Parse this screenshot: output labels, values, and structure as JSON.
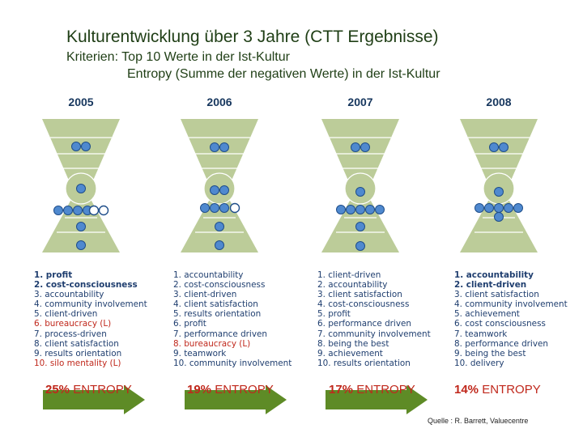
{
  "header": {
    "title": "Kulturentwicklung über 3 Jahre (CTT Ergebnisse)",
    "criteria_line1": "Kriterien: Top 10 Werte in  der Ist-Kultur",
    "criteria_line2": "Entropy (Summe der negativen Werte) in der Ist-Kultur"
  },
  "years": [
    {
      "year": "2005",
      "values": [
        {
          "text": "1. profit",
          "style": "bold"
        },
        {
          "text": "2. cost-consciousness",
          "style": "bold"
        },
        {
          "text": "3. accountability",
          "style": "normal"
        },
        {
          "text": "4. community involvement",
          "style": "normal"
        },
        {
          "text": "5. client-driven",
          "style": "normal"
        },
        {
          "text": "6. bureaucracy (L)",
          "style": "red"
        },
        {
          "text": "7. process-driven",
          "style": "normal"
        },
        {
          "text": "8. client satisfaction",
          "style": "normal"
        },
        {
          "text": "9. results orientation",
          "style": "normal"
        },
        {
          "text": "10. silo mentality (L)",
          "style": "red"
        }
      ],
      "entropy_pct": "25%",
      "entropy_label": "ENTROPY"
    },
    {
      "year": "2006",
      "values": [
        {
          "text": "1. accountability",
          "style": "normal"
        },
        {
          "text": "2. cost-consciousness",
          "style": "normal"
        },
        {
          "text": "3. client-driven",
          "style": "normal"
        },
        {
          "text": "4. client satisfaction",
          "style": "normal"
        },
        {
          "text": "5. results orientation",
          "style": "normal"
        },
        {
          "text": "6. profit",
          "style": "normal"
        },
        {
          "text": "7. performance driven",
          "style": "normal"
        },
        {
          "text": "8. bureaucracy (L)",
          "style": "red"
        },
        {
          "text": "9. teamwork",
          "style": "normal"
        },
        {
          "text": "10. community involvement",
          "style": "normal"
        }
      ],
      "entropy_pct": "19%",
      "entropy_label": "ENTROPY"
    },
    {
      "year": "2007",
      "values": [
        {
          "text": "1. client-driven",
          "style": "normal"
        },
        {
          "text": "2. accountability",
          "style": "normal"
        },
        {
          "text": "3. client satisfaction",
          "style": "normal"
        },
        {
          "text": "4. cost-consciousness",
          "style": "normal"
        },
        {
          "text": "5. profit",
          "style": "normal"
        },
        {
          "text": "6. performance driven",
          "style": "normal"
        },
        {
          "text": "7. community involvement",
          "style": "normal"
        },
        {
          "text": "8. being the best",
          "style": "normal"
        },
        {
          "text": "9. achievement",
          "style": "normal"
        },
        {
          "text": "10. results orientation",
          "style": "normal"
        }
      ],
      "entropy_pct": "17%",
      "entropy_label": "ENTROPY"
    },
    {
      "year": "2008",
      "values": [
        {
          "text": "1. accountability",
          "style": "bold"
        },
        {
          "text": "2. client-driven",
          "style": "bold"
        },
        {
          "text": "3. client satisfaction",
          "style": "normal"
        },
        {
          "text": "4. community involvement",
          "style": "normal"
        },
        {
          "text": "5. achievement",
          "style": "normal"
        },
        {
          "text": "6. cost consciousness",
          "style": "normal"
        },
        {
          "text": "7. teamwork",
          "style": "normal"
        },
        {
          "text": "8. performance driven",
          "style": "normal"
        },
        {
          "text": "9. being the best",
          "style": "normal"
        },
        {
          "text": "10. delivery",
          "style": "normal"
        }
      ],
      "entropy_pct": "14%",
      "entropy_label": "ENTROPY"
    }
  ],
  "source": "Quelle : R. Barrett, Valuecentre",
  "colors": {
    "title": "#1f3e15",
    "hourglass_fill": "#bccc99",
    "dot_fill": "#4f89cf",
    "dot_stroke": "#1f4e8a",
    "value_text": "#1f3e6f",
    "limiting_value": "#c0281c",
    "arrow_green": "#5e8b26"
  }
}
